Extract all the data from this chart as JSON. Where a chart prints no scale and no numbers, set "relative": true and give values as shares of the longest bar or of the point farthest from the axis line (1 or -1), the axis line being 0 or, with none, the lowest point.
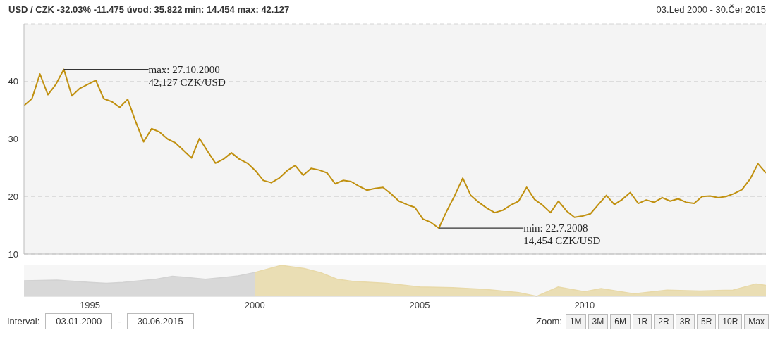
{
  "chart_data": [
    {
      "type": "line",
      "title": "USD / CZK -32.03% -11.475 úvod: 35.822 min: 14.454 max: 42.127",
      "subtitle": "03.Led 2000 - 30.Čer 2015",
      "categories": [
        null,
        null,
        null,
        null,
        null,
        null,
        null,
        null,
        null,
        null,
        null,
        null,
        null,
        null,
        null,
        null,
        null,
        null,
        null,
        null,
        null,
        null,
        null,
        null,
        null,
        null,
        null,
        null,
        null,
        null,
        null,
        null,
        null,
        null,
        null,
        null,
        null,
        null,
        null,
        null,
        null,
        null,
        null,
        null,
        null,
        null,
        null,
        null,
        null,
        null,
        null,
        null,
        null,
        null,
        null,
        null,
        null,
        null,
        null,
        null,
        null,
        null,
        null,
        null,
        null,
        null,
        null,
        null,
        null,
        null,
        null,
        null,
        null,
        null,
        null,
        null,
        null,
        null,
        null,
        null,
        null,
        null,
        null,
        null,
        null,
        null,
        null,
        null,
        null,
        null,
        null,
        null,
        null,
        null
      ],
      "values": [
        35.8,
        37.0,
        41.3,
        37.7,
        39.5,
        42.1,
        37.5,
        38.8,
        39.5,
        40.2,
        37.0,
        36.5,
        35.5,
        36.9,
        33.0,
        29.5,
        31.8,
        31.2,
        30.0,
        29.3,
        28.0,
        26.7,
        30.1,
        27.9,
        25.8,
        26.5,
        27.6,
        26.5,
        25.8,
        24.5,
        22.8,
        22.4,
        23.2,
        24.5,
        25.4,
        23.7,
        24.9,
        24.6,
        24.1,
        22.2,
        22.8,
        22.6,
        21.8,
        21.1,
        21.4,
        21.6,
        20.5,
        19.2,
        18.6,
        18.1,
        16.1,
        15.5,
        14.5,
        17.5,
        20.2,
        23.2,
        20.2,
        19.0,
        18.0,
        17.2,
        17.6,
        18.5,
        19.2,
        21.6,
        19.5,
        18.5,
        17.2,
        19.2,
        17.5,
        16.4,
        16.6,
        17.0,
        18.6,
        20.2,
        18.6,
        19.5,
        20.7,
        18.8,
        19.4,
        19.0,
        19.8,
        19.2,
        19.6,
        19.0,
        18.8,
        20.0,
        20.1,
        19.8,
        20.0,
        20.5,
        21.2,
        23.0,
        25.7,
        24.1
      ],
      "color": "#c0900f",
      "ylim": [
        10,
        50
      ],
      "yticks": [
        10,
        20,
        30,
        40
      ],
      "grid": true,
      "tick_labels": "y",
      "annotations": [
        "max: 27.10.2000\n42,127 CZK/USD",
        "min: 22.7.2008\n14,454 CZK/USD"
      ]
    },
    {
      "type": "area",
      "relative": true,
      "xlim": [
        1993,
        2015.5
      ],
      "xticks": [
        1995,
        2000,
        2005,
        2010
      ],
      "series": [
        {
          "color": "#d2d2d2",
          "x": [
            1993,
            1994,
            1995,
            1995.5,
            1996,
            1997,
            1997.5,
            1998,
            1998.5,
            1999,
            1999.5,
            2000
          ],
          "values": [
            0.5,
            0.52,
            0.45,
            0.42,
            0.45,
            0.55,
            0.65,
            0.6,
            0.55,
            0.6,
            0.66,
            0.77
          ]
        },
        {
          "color": "#e8d9a8",
          "x": [
            2000,
            2000.8,
            2001.5,
            2002,
            2002.5,
            2003,
            2004,
            2005,
            2006,
            2007,
            2008,
            2008.55,
            2009.2,
            2010,
            2010.5,
            2011.5,
            2012.5,
            2013.5,
            2014.5,
            2015.2,
            2015.5
          ],
          "values": [
            0.77,
            1,
            0.9,
            0.76,
            0.55,
            0.48,
            0.42,
            0.3,
            0.28,
            0.22,
            0.12,
            0,
            0.3,
            0.15,
            0.25,
            0.08,
            0.2,
            0.17,
            0.2,
            0.4,
            0.35
          ]
        }
      ],
      "annotations": [
        "Interval:",
        "03.01.2000",
        "-",
        "30.06.2015",
        "Zoom:",
        "1M",
        "3M",
        "6M",
        "1R",
        "2R",
        "3R",
        "5R",
        "10R",
        "Max"
      ]
    }
  ]
}
